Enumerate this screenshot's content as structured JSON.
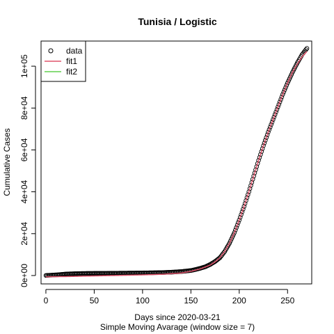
{
  "chart_data": {
    "type": "scatter",
    "title": "Tunisia / Logistic",
    "xlabel": "Days since 2020-03-21",
    "xlabel2": "Simple Moving Avarage (window size = 7)",
    "ylabel": "Cumulative Cases",
    "xlim": [
      -5,
      275
    ],
    "ylim": [
      -4000,
      112000
    ],
    "x_ticks": [
      0,
      50,
      100,
      150,
      200,
      250
    ],
    "x_tick_labels": [
      "0",
      "50",
      "100",
      "150",
      "200",
      "250"
    ],
    "y_ticks": [
      0,
      20000,
      40000,
      60000,
      80000,
      100000
    ],
    "y_tick_labels": [
      "0e+00",
      "2e+04",
      "4e+04",
      "6e+04",
      "8e+04",
      "1e+05"
    ],
    "grid": false,
    "legend": {
      "position": "top-left",
      "entries": [
        {
          "label": "data",
          "color": "#000000",
          "kind": "point"
        },
        {
          "label": "fit1",
          "color": "#DF536B",
          "kind": "line"
        },
        {
          "label": "fit2",
          "color": "#61D04F",
          "kind": "line"
        }
      ]
    },
    "series": [
      {
        "name": "data",
        "kind": "points",
        "color": "#000000",
        "x": [
          0,
          10,
          20,
          30,
          40,
          50,
          60,
          70,
          80,
          90,
          100,
          110,
          120,
          130,
          140,
          150,
          155,
          160,
          165,
          170,
          175,
          180,
          185,
          190,
          195,
          200,
          205,
          210,
          215,
          220,
          225,
          230,
          235,
          240,
          245,
          250,
          255,
          260,
          265,
          270
        ],
        "y": [
          50,
          300,
          700,
          900,
          1000,
          1050,
          1080,
          1110,
          1150,
          1200,
          1250,
          1320,
          1420,
          1600,
          1900,
          2400,
          2900,
          3500,
          4200,
          5300,
          6700,
          8500,
          11500,
          15500,
          20500,
          26500,
          33000,
          40000,
          47500,
          55000,
          62000,
          68500,
          74500,
          80500,
          86500,
          92000,
          97000,
          101500,
          105500,
          108500
        ]
      },
      {
        "name": "fit1",
        "kind": "line",
        "color": "#DF536B",
        "x": [
          0,
          20,
          40,
          60,
          80,
          100,
          120,
          140,
          150,
          160,
          170,
          175,
          180,
          185,
          190,
          195,
          200,
          205,
          210,
          215,
          220,
          225,
          230,
          235,
          240,
          245,
          250,
          255,
          260,
          265,
          270
        ],
        "y": [
          -600,
          -500,
          -300,
          -100,
          100,
          300,
          600,
          1200,
          2000,
          3200,
          5000,
          6500,
          8500,
          11500,
          15500,
          20500,
          26500,
          33000,
          40000,
          47500,
          55000,
          62000,
          68500,
          74500,
          80500,
          86500,
          92000,
          97000,
          101000,
          104500,
          107000
        ]
      },
      {
        "name": "fit2",
        "kind": "line",
        "color": "#61D04F",
        "x": [],
        "y": []
      }
    ]
  }
}
